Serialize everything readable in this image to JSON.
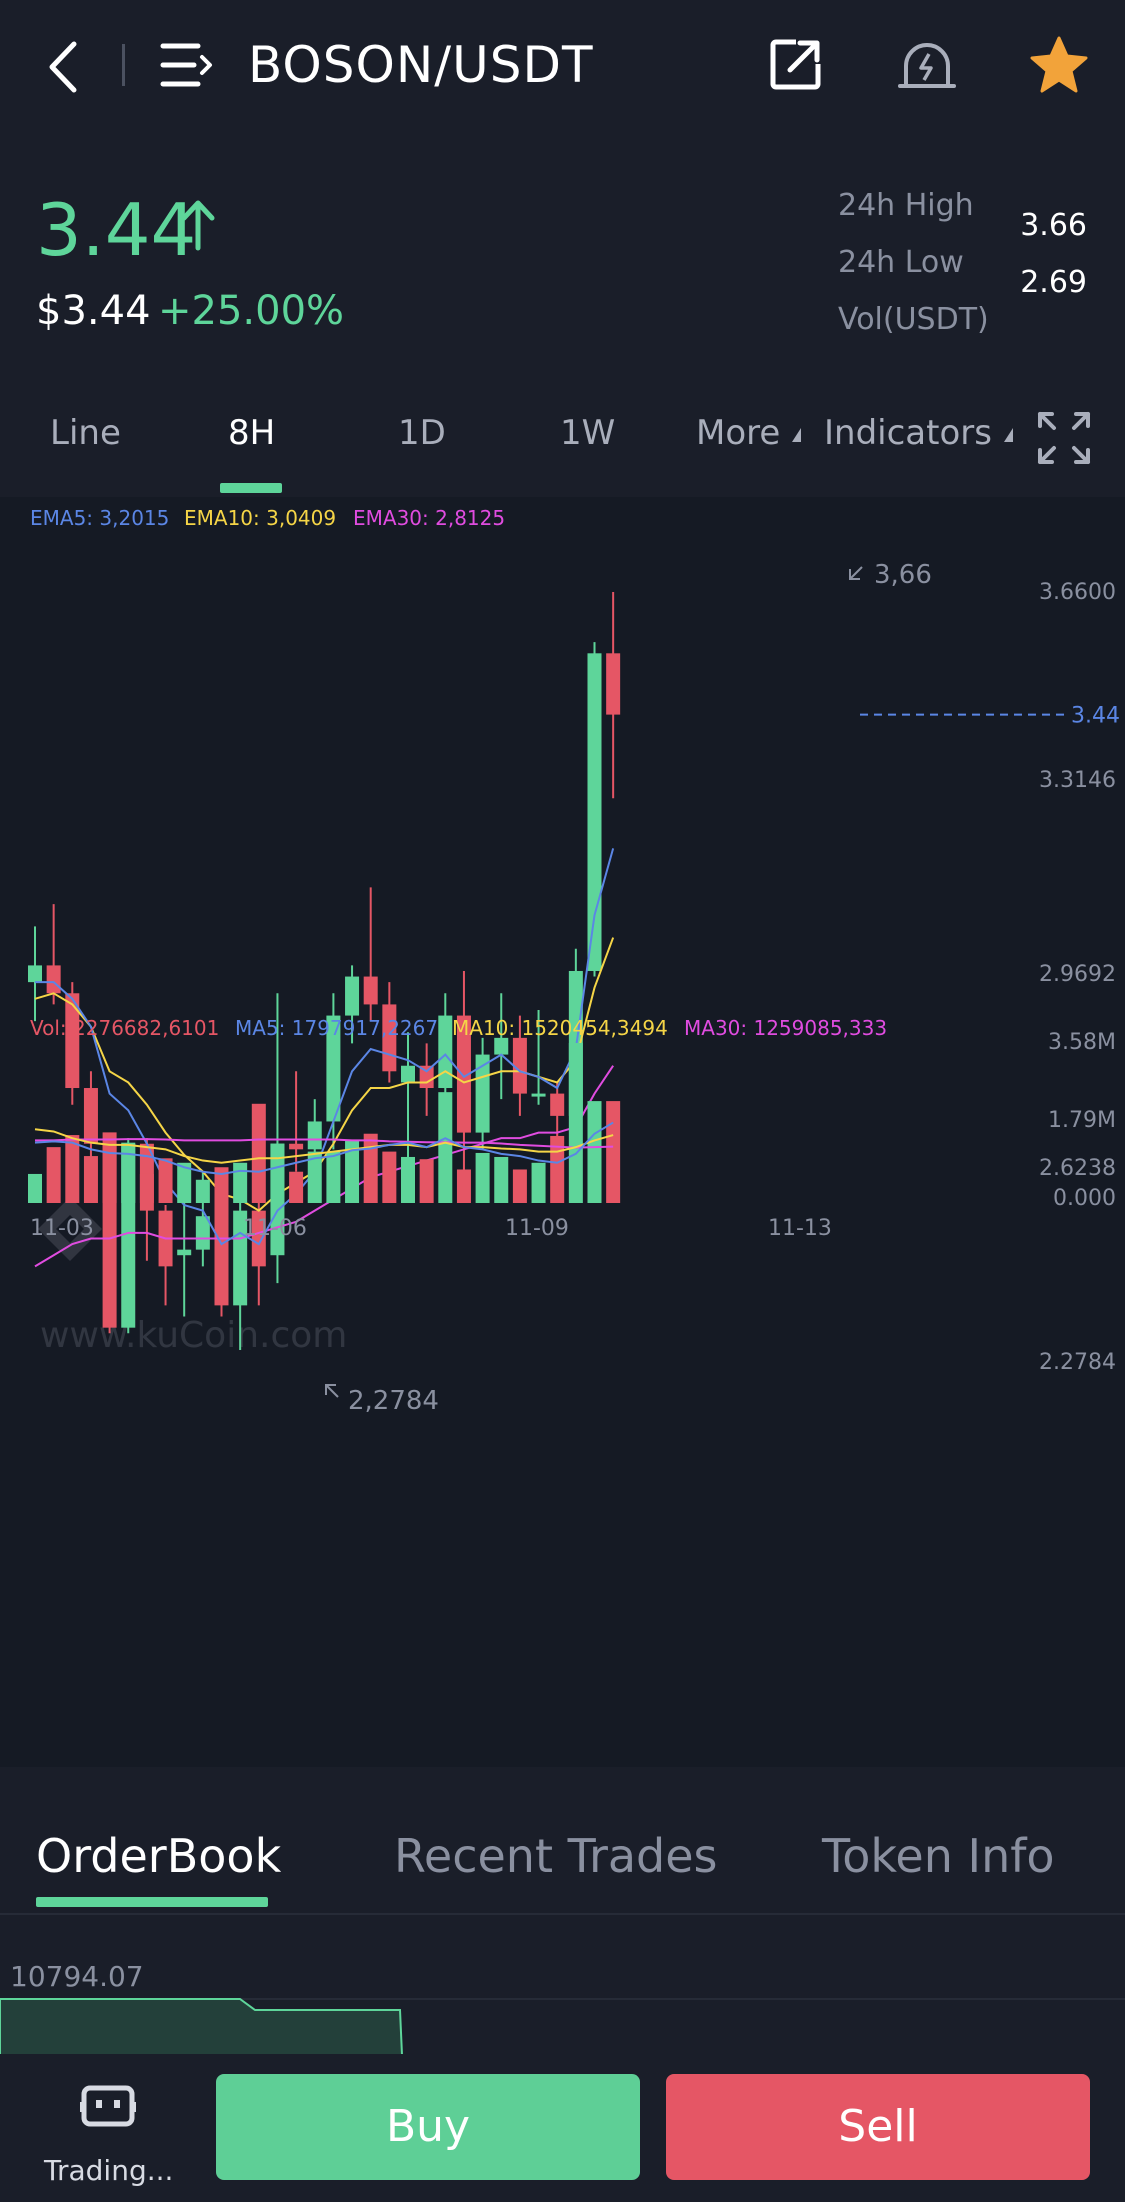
{
  "header": {
    "title": "BOSON/USDT"
  },
  "price": {
    "last": "3.44",
    "usd": "$3.44",
    "change": "+25.00%",
    "high_label": "24h High",
    "high_value": "3.66",
    "low_label": "24h Low",
    "low_value": "2.69",
    "vol_label": "Vol(USDT)"
  },
  "periods": {
    "items": [
      "Line",
      "8H",
      "1D",
      "1W"
    ],
    "active": "8H",
    "more": "More",
    "indicators": "Indicators"
  },
  "indicators": {
    "ema5": "EMA5: 3,2015",
    "ema10": "EMA10: 3,0409",
    "ema30": "EMA30: 2,8125",
    "vol": "Vol: 2276682,6101",
    "ma5": "MA5: 1797917,2267",
    "ma10": "MA10: 1520454,3494",
    "ma30": "MA30: 1259085,333"
  },
  "colors": {
    "up": "#5ed59a",
    "down": "#e55665",
    "ema5": "#5b86e5",
    "ema10": "#f5d547",
    "ema30": "#e04ce0"
  },
  "chart_data": {
    "type": "candlestick",
    "price_axis": [
      "3.6600",
      "3.3146",
      "2.9692",
      "2.6238",
      "2.2784"
    ],
    "ylim": [
      2.2784,
      3.66
    ],
    "current_price_label": "3.44",
    "max_marker": "3,66",
    "min_marker": "2,2784",
    "watermark": "www.kuCoin.com",
    "volume_axis": [
      "3.58M",
      "1.79M",
      "0.000"
    ],
    "volume_ylim": [
      0,
      3.58
    ],
    "x_labels": [
      "11-03",
      "11-06",
      "11-09",
      "11-13"
    ],
    "candles": [
      {
        "o": 2.96,
        "c": 2.99,
        "h": 3.06,
        "l": 2.89
      },
      {
        "o": 2.99,
        "c": 2.94,
        "h": 3.1,
        "l": 2.92
      },
      {
        "o": 2.94,
        "c": 2.77,
        "h": 2.96,
        "l": 2.74
      },
      {
        "o": 2.77,
        "c": 2.67,
        "h": 2.8,
        "l": 2.63
      },
      {
        "o": 2.67,
        "c": 2.34,
        "h": 2.68,
        "l": 2.33
      },
      {
        "o": 2.34,
        "c": 2.67,
        "h": 2.68,
        "l": 2.33
      },
      {
        "o": 2.67,
        "c": 2.55,
        "h": 2.68,
        "l": 2.46
      },
      {
        "o": 2.55,
        "c": 2.45,
        "h": 2.56,
        "l": 2.38
      },
      {
        "o": 2.47,
        "c": 2.48,
        "h": 2.58,
        "l": 2.36
      },
      {
        "o": 2.48,
        "c": 2.54,
        "h": 2.62,
        "l": 2.45
      },
      {
        "o": 2.58,
        "c": 2.38,
        "h": 2.6,
        "l": 2.36
      },
      {
        "o": 2.38,
        "c": 2.55,
        "h": 2.58,
        "l": 2.3
      },
      {
        "o": 2.55,
        "c": 2.45,
        "h": 2.6,
        "l": 2.38
      },
      {
        "o": 2.47,
        "c": 2.67,
        "h": 2.94,
        "l": 2.42
      },
      {
        "o": 2.67,
        "c": 2.66,
        "h": 2.8,
        "l": 2.62
      },
      {
        "o": 2.66,
        "c": 2.71,
        "h": 2.75,
        "l": 2.64
      },
      {
        "o": 2.71,
        "c": 2.9,
        "h": 2.94,
        "l": 2.66
      },
      {
        "o": 2.9,
        "c": 2.97,
        "h": 2.99,
        "l": 2.85
      },
      {
        "o": 2.97,
        "c": 2.92,
        "h": 3.13,
        "l": 2.89
      },
      {
        "o": 2.92,
        "c": 2.8,
        "h": 2.96,
        "l": 2.78
      },
      {
        "o": 2.78,
        "c": 2.81,
        "h": 2.87,
        "l": 2.62
      },
      {
        "o": 2.81,
        "c": 2.77,
        "h": 2.85,
        "l": 2.72
      },
      {
        "o": 2.77,
        "c": 2.9,
        "h": 2.94,
        "l": 2.64
      },
      {
        "o": 2.9,
        "c": 2.69,
        "h": 2.98,
        "l": 2.58
      },
      {
        "o": 2.69,
        "c": 2.83,
        "h": 2.86,
        "l": 2.66
      },
      {
        "o": 2.83,
        "c": 2.86,
        "h": 2.94,
        "l": 2.75
      },
      {
        "o": 2.86,
        "c": 2.76,
        "h": 2.9,
        "l": 2.72
      },
      {
        "o": 2.76,
        "c": 2.76,
        "h": 2.91,
        "l": 2.74
      },
      {
        "o": 2.76,
        "c": 2.72,
        "h": 2.78,
        "l": 2.68
      },
      {
        "o": 2.72,
        "c": 2.98,
        "h": 3.02,
        "l": 2.7
      },
      {
        "o": 2.98,
        "c": 3.55,
        "h": 3.57,
        "l": 2.97
      },
      {
        "o": 3.55,
        "c": 3.44,
        "h": 3.66,
        "l": 3.29
      }
    ],
    "ema5": [
      2.96,
      2.96,
      2.93,
      2.88,
      2.76,
      2.73,
      2.67,
      2.6,
      2.56,
      2.55,
      2.49,
      2.51,
      2.49,
      2.55,
      2.58,
      2.62,
      2.71,
      2.8,
      2.84,
      2.83,
      2.82,
      2.8,
      2.83,
      2.79,
      2.81,
      2.83,
      2.8,
      2.79,
      2.77,
      2.84,
      3.08,
      3.2
    ],
    "ema10": [
      2.93,
      2.94,
      2.92,
      2.88,
      2.8,
      2.78,
      2.74,
      2.69,
      2.65,
      2.62,
      2.58,
      2.57,
      2.55,
      2.58,
      2.6,
      2.62,
      2.67,
      2.73,
      2.77,
      2.77,
      2.78,
      2.78,
      2.8,
      2.78,
      2.79,
      2.8,
      2.8,
      2.79,
      2.78,
      2.82,
      2.95,
      3.04
    ],
    "ema30": [
      2.45,
      2.47,
      2.49,
      2.5,
      2.5,
      2.51,
      2.51,
      2.5,
      2.5,
      2.5,
      2.5,
      2.5,
      2.51,
      2.52,
      2.53,
      2.55,
      2.57,
      2.59,
      2.61,
      2.62,
      2.63,
      2.64,
      2.65,
      2.66,
      2.67,
      2.68,
      2.68,
      2.69,
      2.69,
      2.7,
      2.76,
      2.81
    ],
    "volumes": [
      0.65,
      1.25,
      1.52,
      1.05,
      1.58,
      1.35,
      0.65,
      1.0,
      0.9,
      0.52,
      0.8,
      0.9,
      2.22,
      1.33,
      0.7,
      1.15,
      1.15,
      1.42,
      1.55,
      1.15,
      1.03,
      0.98,
      2.48,
      0.75,
      1.12,
      1.03,
      0.75,
      0.9,
      1.5,
      3.58,
      2.28,
      2.28
    ],
    "ma5_vol": [
      1.35,
      1.38,
      1.35,
      1.2,
      1.12,
      1.1,
      1.05,
      0.95,
      0.8,
      0.7,
      0.65,
      0.72,
      0.7,
      0.8,
      0.9,
      1.0,
      1.05,
      1.18,
      1.22,
      1.3,
      1.35,
      1.25,
      1.45,
      1.25,
      1.2,
      1.1,
      1.05,
      0.95,
      0.9,
      1.1,
      1.55,
      1.8
    ],
    "ma10_vol": [
      1.65,
      1.6,
      1.45,
      1.35,
      1.3,
      1.3,
      1.25,
      1.2,
      1.05,
      0.95,
      0.9,
      0.95,
      1.0,
      1.0,
      1.05,
      1.1,
      1.15,
      1.2,
      1.25,
      1.3,
      1.3,
      1.25,
      1.35,
      1.25,
      1.25,
      1.22,
      1.2,
      1.15,
      1.15,
      1.25,
      1.4,
      1.52
    ],
    "ma30_vol": [
      1.4,
      1.4,
      1.42,
      1.42,
      1.42,
      1.43,
      1.43,
      1.42,
      1.4,
      1.4,
      1.4,
      1.4,
      1.42,
      1.42,
      1.42,
      1.42,
      1.42,
      1.4,
      1.4,
      1.38,
      1.37,
      1.36,
      1.36,
      1.35,
      1.35,
      1.33,
      1.3,
      1.28,
      1.26,
      1.24,
      1.25,
      1.26
    ]
  },
  "bottom_tabs": {
    "orderbook": "OrderBook",
    "recent_trades": "Recent Trades",
    "token_info": "Token Info"
  },
  "orderbook": {
    "first_value": "10794.07"
  },
  "footer": {
    "bot_label": "Trading...",
    "buy": "Buy",
    "sell": "Sell"
  }
}
